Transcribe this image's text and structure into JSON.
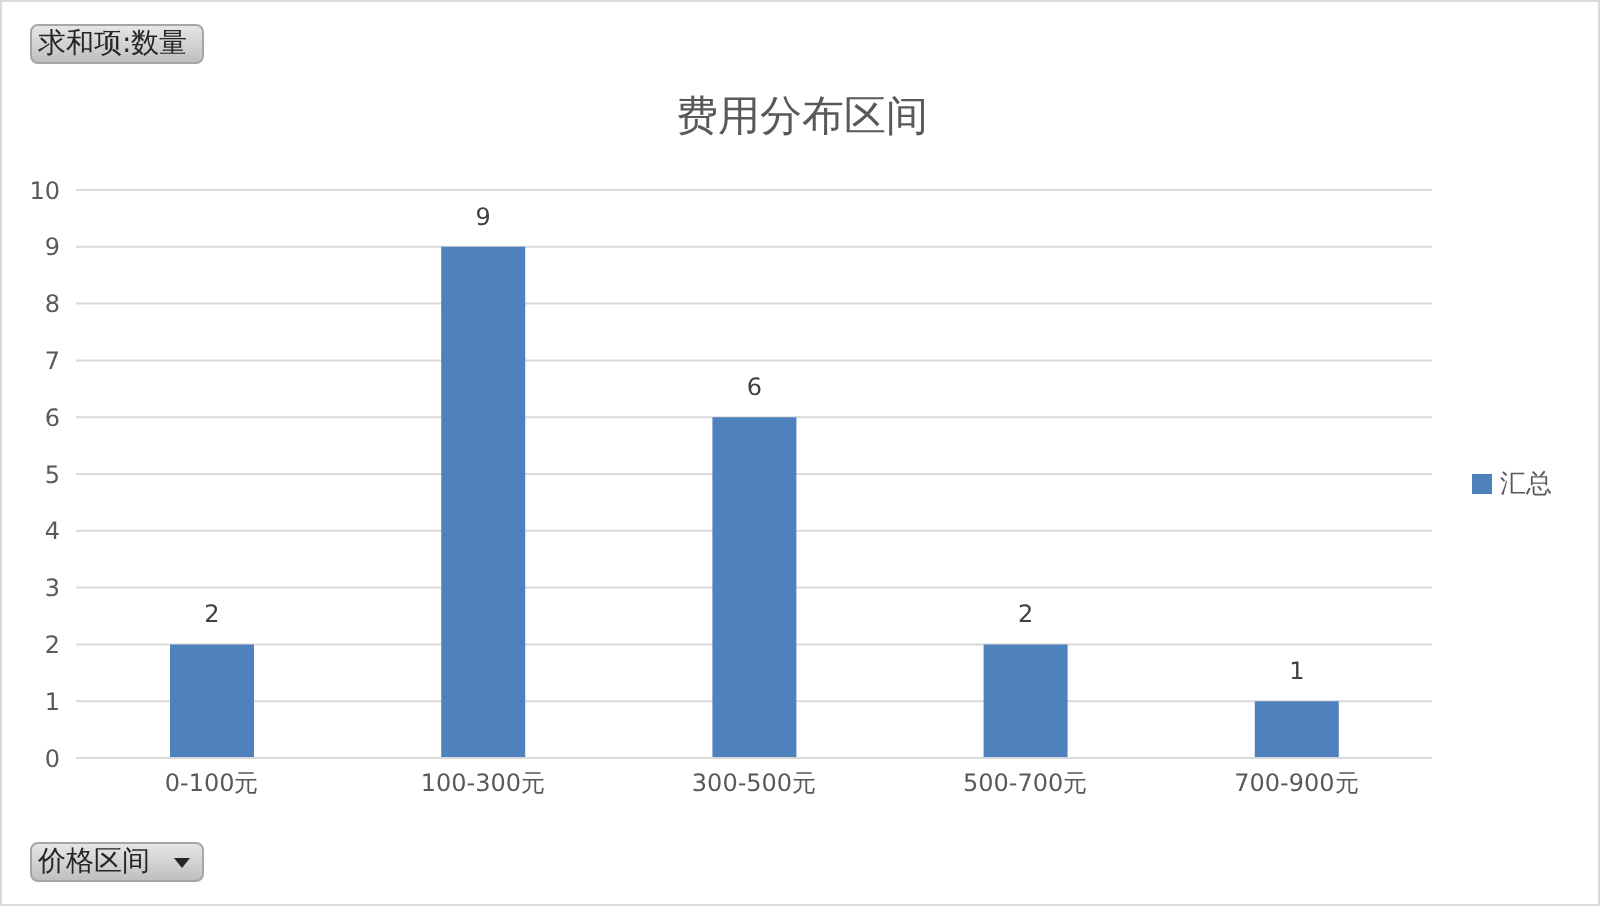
{
  "chart_data": {
    "type": "bar",
    "title": "费用分布区间",
    "categories": [
      "0-100元",
      "100-300元",
      "300-500元",
      "500-700元",
      "700-900元"
    ],
    "series": [
      {
        "name": "汇总",
        "color": "#4f81bd",
        "values": [
          2,
          9,
          6,
          2,
          1
        ]
      }
    ],
    "ylim": [
      0,
      10
    ],
    "yticks": [
      0,
      1,
      2,
      3,
      4,
      5,
      6,
      7,
      8,
      9,
      10
    ],
    "grid": "y",
    "legend": "right",
    "data_labels": true,
    "annotations": [
      "求和项:数量",
      "价格区间"
    ]
  }
}
